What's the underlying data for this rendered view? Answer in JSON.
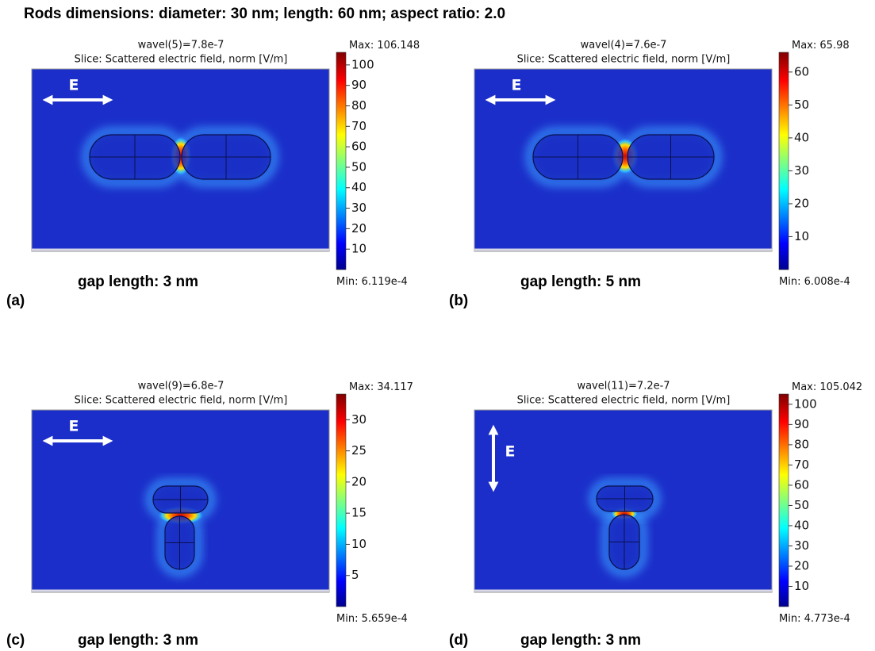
{
  "title": "Rods dimensions: diameter: 30 nm; length: 60 nm; aspect ratio: 2.0",
  "panels": [
    {
      "label": "(a)",
      "wavel": "wavel(5)=7.8e-7",
      "slice": "Slice: Scattered electric field, norm [V/m]",
      "max_text": "Max:",
      "max": 106.148,
      "min_text": "Min:",
      "min": {
        "value": 0.0006119,
        "label": "6.119e-4"
      },
      "ticks": [
        10,
        20,
        30,
        40,
        50,
        60,
        70,
        80,
        90,
        100
      ],
      "gap": "gap length: 3 nm",
      "field": "E"
    },
    {
      "label": "(b)",
      "wavel": "wavel(4)=7.6e-7",
      "slice": "Slice: Scattered electric field, norm [V/m]",
      "max_text": "Max:",
      "max": 65.98,
      "min_text": "Min:",
      "min": {
        "value": 0.0006008,
        "label": "6.008e-4"
      },
      "ticks": [
        10,
        20,
        30,
        40,
        50,
        60
      ],
      "gap": "gap length: 5 nm",
      "field": "E"
    },
    {
      "label": "(c)",
      "wavel": "wavel(9)=6.8e-7",
      "slice": "Slice: Scattered electric field, norm [V/m]",
      "max_text": "Max:",
      "max": 34.117,
      "min_text": "Min:",
      "min": {
        "value": 0.0005659,
        "label": "5.659e-4"
      },
      "ticks": [
        5,
        10,
        15,
        20,
        25,
        30
      ],
      "gap": "gap length: 3 nm",
      "field": "E"
    },
    {
      "label": "(d)",
      "wavel": "wavel(11)=7.2e-7",
      "slice": "Slice: Scattered electric field, norm [V/m]",
      "max_text": "Max:",
      "max": 105.042,
      "min_text": "Min:",
      "min": {
        "value": 0.0004773,
        "label": "4.773e-4"
      },
      "ticks": [
        10,
        20,
        30,
        40,
        50,
        60,
        70,
        80,
        90,
        100
      ],
      "gap": "gap length: 3 nm",
      "field": "E"
    }
  ]
}
